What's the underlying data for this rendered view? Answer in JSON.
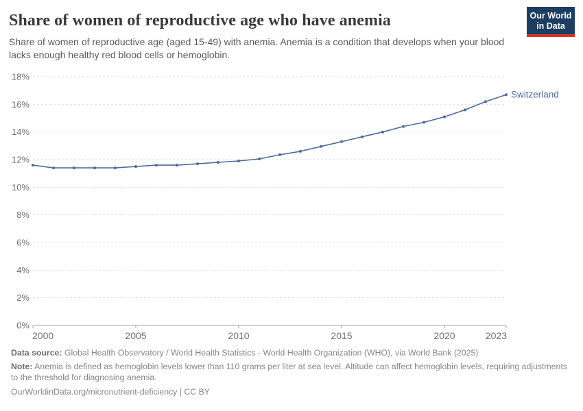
{
  "header": {
    "title": "Share of women of reproductive age who have anemia",
    "subtitle": "Share of women of reproductive age (aged 15-49) with anemia. Anemia is a condition that develops when your blood lacks enough healthy red blood cells or hemoglobin.",
    "logo": {
      "line1": "Our World",
      "line2": "in Data",
      "bg_color": "#1d3d63",
      "stripe_color": "#d8352a"
    }
  },
  "chart_data": {
    "type": "line",
    "title": "Share of women of reproductive age who have anemia",
    "xlabel": "",
    "ylabel": "",
    "xlim": [
      2000,
      2023
    ],
    "ylim": [
      0,
      18
    ],
    "x_ticks": [
      2000,
      2005,
      2010,
      2015,
      2020,
      2023
    ],
    "y_ticks": [
      0,
      2,
      4,
      6,
      8,
      10,
      12,
      14,
      16,
      18
    ],
    "y_tick_suffix": "%",
    "grid": "horizontal-dashed",
    "legend_position": "end-of-line",
    "x": [
      2000,
      2001,
      2002,
      2003,
      2004,
      2005,
      2006,
      2007,
      2008,
      2009,
      2010,
      2011,
      2012,
      2013,
      2014,
      2015,
      2016,
      2017,
      2018,
      2019,
      2020,
      2021,
      2022,
      2023
    ],
    "series": [
      {
        "name": "Switzerland",
        "color": "#4c6a9c",
        "values": [
          11.6,
          11.4,
          11.4,
          11.4,
          11.4,
          11.5,
          11.6,
          11.6,
          11.7,
          11.8,
          11.9,
          12.05,
          12.35,
          12.6,
          12.95,
          13.3,
          13.65,
          14.0,
          14.4,
          14.7,
          15.1,
          15.6,
          16.2,
          16.7
        ]
      }
    ],
    "style": {
      "gridline_color": "#dedede",
      "axis_color": "#a5a5a5",
      "tick_label_color": "#6e6e6e"
    }
  },
  "footer": {
    "data_source_label": "Data source:",
    "data_source": "Global Health Observatory / World Health Statistics - World Health Organization (WHO), via World Bank (2025)",
    "note_label": "Note:",
    "note": "Anemia is defined as hemoglobin levels lower than 110 grams per liter at sea level. Altitude can affect hemoglobin levels, requiring adjustments to the threshold for diagnosing anemia.",
    "url": "OurWorldinData.org/micronutrient-deficiency | CC BY"
  }
}
